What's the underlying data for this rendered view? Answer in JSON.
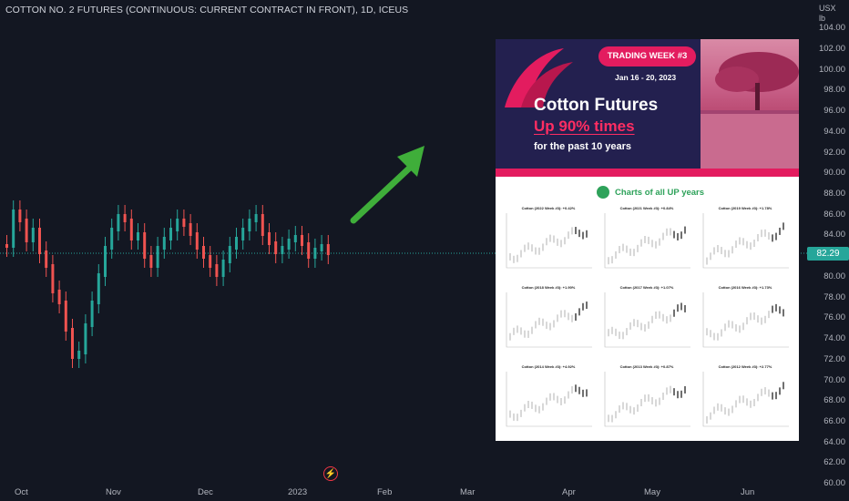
{
  "chart": {
    "title": "COTTON NO. 2 FUTURES (CONTINUOUS: CURRENT CONTRACT IN FRONT), 1D, ICEUS",
    "unit_currency": "USX",
    "unit_measure": "lb",
    "last_price": "82.29",
    "price_axis": [
      "104.00",
      "102.00",
      "100.00",
      "98.00",
      "96.00",
      "94.00",
      "92.00",
      "90.00",
      "88.00",
      "86.00",
      "84.00",
      "80.00",
      "78.00",
      "76.00",
      "74.00",
      "72.00",
      "70.00",
      "68.00",
      "66.00",
      "64.00",
      "62.00",
      "60.00"
    ],
    "time_axis": [
      "Oct",
      "Nov",
      "Dec",
      "2023",
      "Feb",
      "Mar",
      "Apr",
      "May",
      "Jun"
    ],
    "colors": {
      "up": "#26a69a",
      "down": "#ef5350",
      "arrow": "#3fae3a",
      "background": "#131722"
    }
  },
  "promo": {
    "badge": "TRADING WEEK #3",
    "dates": "Jan 16 - 20, 2023",
    "headline": "Cotton Futures",
    "highlight": "Up 90% times",
    "subline": "for the past 10 years",
    "section_title": "Charts of all UP years",
    "thumbnails": [
      {
        "title": "Cotton (2022 Week #3): +0.42%"
      },
      {
        "title": "Cotton (2021 Week #3): +0.84%"
      },
      {
        "title": "Cotton (2019 Week #3): +1.78%"
      },
      {
        "title": "Cotton (2018 Week #3): +1.90%"
      },
      {
        "title": "Cotton (2017 Week #3): +1.07%"
      },
      {
        "title": "Cotton (2016 Week #3): +1.73%"
      },
      {
        "title": "Cotton (2014 Week #3): +4.92%"
      },
      {
        "title": "Cotton (2013 Week #3): +0.87%"
      },
      {
        "title": "Cotton (2012 Week #3): +2.77%"
      }
    ]
  }
}
